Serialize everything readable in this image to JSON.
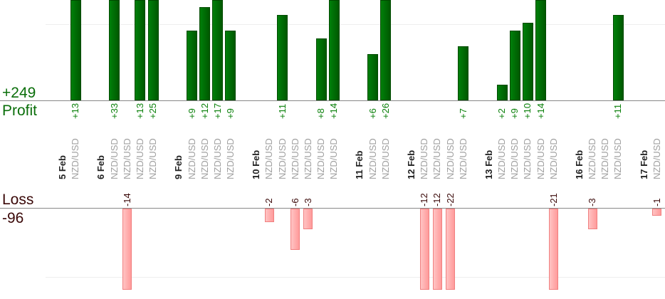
{
  "summary": {
    "profit_total": "+249",
    "profit_label": "Profit",
    "loss_label": "Loss",
    "loss_total": "-96"
  },
  "colors": {
    "profit": "#006400",
    "loss": "#ffa8a8",
    "profit_text": "#0a800a",
    "loss_text": "#3a0808"
  },
  "chart_data": {
    "type": "bar",
    "title": "",
    "profit_scale_note": "upper panel shows profits, lower panel shows losses",
    "slots": [
      {
        "date": "5 Feb"
      },
      {
        "symbol": "NZD/USD",
        "value": 13
      },
      {
        "gap": true
      },
      {
        "date": "6 Feb"
      },
      {
        "symbol": "NZD/USD",
        "value": 33
      },
      {
        "symbol": "NZD/USD",
        "value": -14
      },
      {
        "symbol": "NZD/USD",
        "value": 13
      },
      {
        "symbol": "NZD/USD",
        "value": 25
      },
      {
        "gap": true
      },
      {
        "date": "9 Feb"
      },
      {
        "symbol": "NZD/USD",
        "value": 9
      },
      {
        "symbol": "NZD/USD",
        "value": 12
      },
      {
        "symbol": "NZD/USD",
        "value": 17
      },
      {
        "symbol": "NZD/USD",
        "value": 9
      },
      {
        "gap": true
      },
      {
        "date": "10 Feb"
      },
      {
        "symbol": "NZD/USD",
        "value": -2
      },
      {
        "symbol": "NZD/USD",
        "value": 11
      },
      {
        "symbol": "NZD/USD",
        "value": -6
      },
      {
        "symbol": "NZD/USD",
        "value": -3
      },
      {
        "symbol": "NZD/USD",
        "value": 8
      },
      {
        "symbol": "NZD/USD",
        "value": 14
      },
      {
        "gap": true
      },
      {
        "date": "11 Feb"
      },
      {
        "symbol": "NZD/USD",
        "value": 6
      },
      {
        "symbol": "NZD/USD",
        "value": 26
      },
      {
        "gap": true
      },
      {
        "date": "12 Feb"
      },
      {
        "symbol": "NZD/USD",
        "value": -12
      },
      {
        "symbol": "NZD/USD",
        "value": -12
      },
      {
        "symbol": "NZD/USD",
        "value": -22
      },
      {
        "symbol": "NZD/USD",
        "value": 7
      },
      {
        "gap": true
      },
      {
        "date": "13 Feb"
      },
      {
        "symbol": "NZD/USD",
        "value": 2
      },
      {
        "symbol": "NZD/USD",
        "value": 9
      },
      {
        "symbol": "NZD/USD",
        "value": 10
      },
      {
        "symbol": "NZD/USD",
        "value": 14
      },
      {
        "symbol": "NZD/USD",
        "value": -21
      },
      {
        "gap": true
      },
      {
        "date": "16 Feb"
      },
      {
        "symbol": "NZD/USD",
        "value": -3
      },
      {
        "symbol": "NZD/USD",
        "value": null
      },
      {
        "symbol": "NZD/USD",
        "value": 11
      },
      {
        "gap": true
      },
      {
        "date": "17 Feb"
      },
      {
        "symbol": "NZD/USD",
        "value": -1
      }
    ]
  }
}
